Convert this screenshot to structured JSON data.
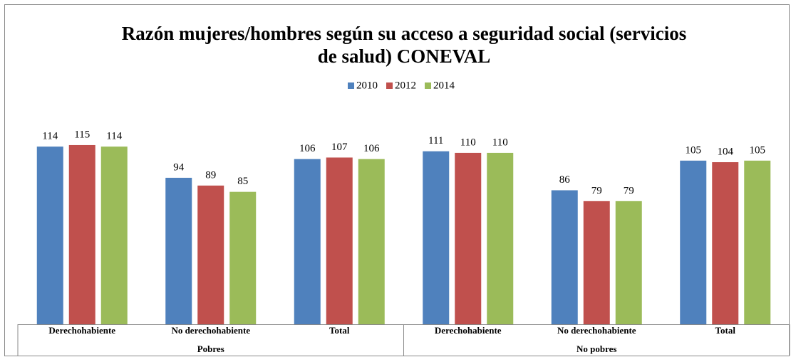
{
  "chart_data": {
    "type": "bar",
    "title": [
      "Razón mujeres/hombres según su acceso a seguridad social (servicios",
      "de salud) CONEVAL"
    ],
    "categories": [
      "Derechohabiente",
      "No derechohabiente",
      "Total",
      "Derechohabiente",
      "No derechohabiente",
      "Total"
    ],
    "groups": [
      "Pobres",
      "No pobres"
    ],
    "series": [
      {
        "name": "2010",
        "color": "#4f81bd",
        "values": [
          114,
          94,
          106,
          111,
          86,
          105
        ]
      },
      {
        "name": "2012",
        "color": "#c0504d",
        "values": [
          115,
          89,
          107,
          110,
          79,
          104
        ]
      },
      {
        "name": "2014",
        "color": "#9bbb59",
        "values": [
          114,
          85,
          106,
          110,
          79,
          105
        ]
      }
    ],
    "ylim": [
      0,
      120
    ]
  }
}
